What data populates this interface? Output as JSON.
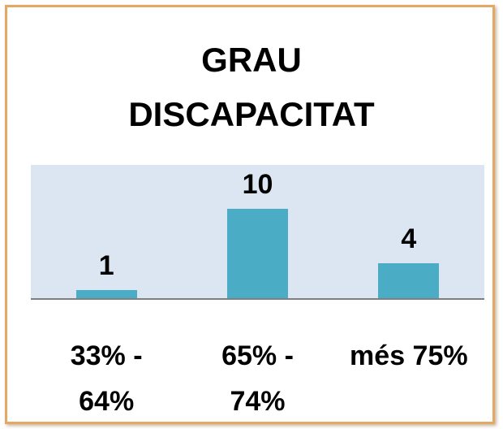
{
  "chart_data": {
    "type": "bar",
    "title": "GRAU DISCAPACITAT",
    "categories": [
      "33% - 64%",
      "65% - 74%",
      "més 75%"
    ],
    "values": [
      1,
      10,
      4
    ],
    "color": "#4bacc6"
  }
}
